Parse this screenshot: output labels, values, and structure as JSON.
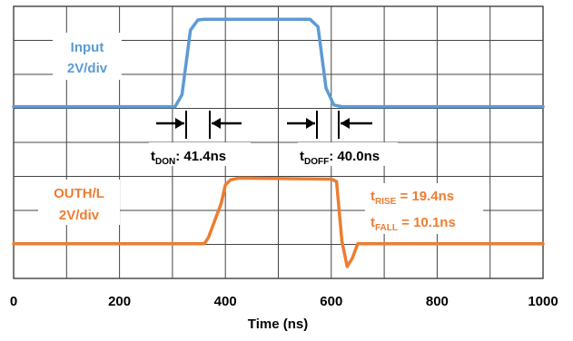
{
  "chart_data": {
    "type": "line",
    "title": "",
    "xlabel": "Time (ns)",
    "ylabel": "",
    "xlim": [
      0,
      1000
    ],
    "x_ticks": [
      "0",
      "200",
      "400",
      "600",
      "800",
      "1000"
    ],
    "grid": true,
    "grid_divisions": {
      "x": 10,
      "y": 8
    },
    "series": [
      {
        "name": "Input",
        "scale": "2V/div",
        "color": "#5b9bd5",
        "unit": "div",
        "points": [
          [
            0,
            5.05
          ],
          [
            305,
            5.05
          ],
          [
            318,
            5.4
          ],
          [
            334,
            7.3
          ],
          [
            348,
            7.6
          ],
          [
            360,
            7.62
          ],
          [
            560,
            7.62
          ],
          [
            575,
            7.4
          ],
          [
            590,
            5.6
          ],
          [
            605,
            5.1
          ],
          [
            620,
            5.05
          ],
          [
            1000,
            5.05
          ]
        ]
      },
      {
        "name": "OUTH/L",
        "scale": "2V/div",
        "color": "#ed7d31",
        "unit": "div",
        "points": [
          [
            0,
            1.02
          ],
          [
            360,
            1.02
          ],
          [
            368,
            1.2
          ],
          [
            380,
            1.7
          ],
          [
            392,
            2.2
          ],
          [
            400,
            2.75
          ],
          [
            410,
            2.9
          ],
          [
            425,
            2.95
          ],
          [
            600,
            2.92
          ],
          [
            610,
            2.85
          ],
          [
            620,
            1.1
          ],
          [
            630,
            0.35
          ],
          [
            640,
            0.6
          ],
          [
            650,
            1.02
          ],
          [
            1000,
            1.02
          ]
        ]
      }
    ],
    "annotations": {
      "input_label": "Input",
      "input_scale": "2V/div",
      "output_label": "OUTH/L",
      "output_scale": "2V/div",
      "tdon_main": "t",
      "tdon_sub": "DON",
      "tdon_value": ": 41.4ns",
      "tdoff_main": "t",
      "tdoff_sub": "DOFF",
      "tdoff_value": ": 40.0ns",
      "trise_main": "t",
      "trise_sub": "RISE",
      "trise_value": " = 19.4ns",
      "tfall_main": "t",
      "tfall_sub": "FALL",
      "tfall_value": " = 10.1ns"
    }
  }
}
